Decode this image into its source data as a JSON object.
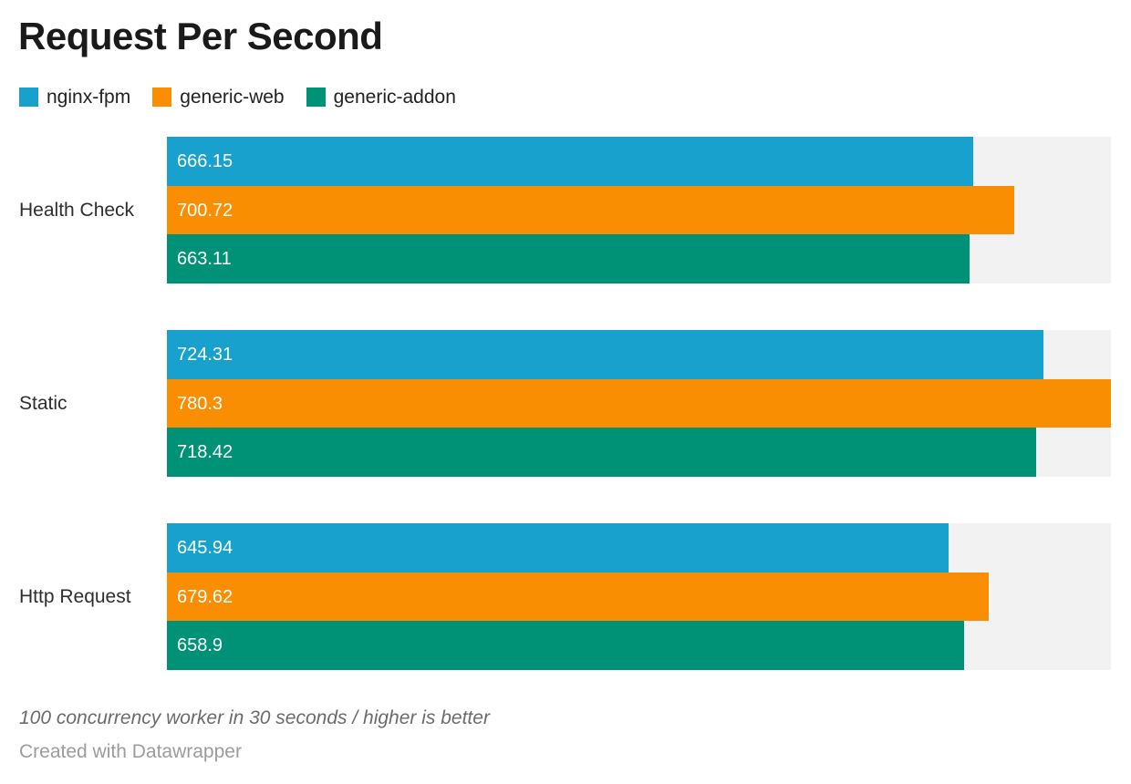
{
  "title": "Request Per Second",
  "chart_data": {
    "type": "bar",
    "orientation": "horizontal",
    "title": "Request Per Second",
    "categories": [
      "Health Check",
      "Static",
      "Http Request"
    ],
    "series": [
      {
        "name": "nginx-fpm",
        "color": "#18a1cd",
        "values": [
          666.15,
          724.31,
          645.94
        ]
      },
      {
        "name": "generic-web",
        "color": "#f98e02",
        "values": [
          700.72,
          780.3,
          679.62
        ]
      },
      {
        "name": "generic-addon",
        "color": "#009276",
        "values": [
          663.11,
          718.42,
          658.9
        ]
      }
    ],
    "xlim": [
      0,
      780.3
    ],
    "grid": false,
    "legend_position": "top-left",
    "value_labels": "inside-left",
    "track_color": "#f2f2f2"
  },
  "colors": {
    "background": "#ffffff",
    "track": "#f2f2f2",
    "title_text": "#1a1a1a",
    "category_text": "#2e2e2e",
    "value_text": "#ffffff",
    "note_text": "#6b6b6b",
    "attribution_text": "#9c9c9c"
  },
  "footer": {
    "note": "100 concurrency worker in 30 seconds / higher is better",
    "attribution": "Created with Datawrapper"
  }
}
